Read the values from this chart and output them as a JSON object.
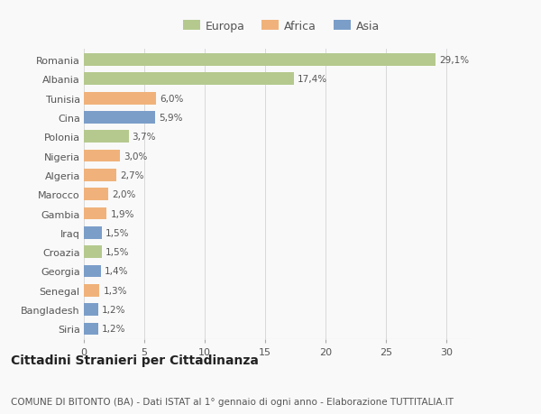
{
  "categories": [
    "Romania",
    "Albania",
    "Tunisia",
    "Cina",
    "Polonia",
    "Nigeria",
    "Algeria",
    "Marocco",
    "Gambia",
    "Iraq",
    "Croazia",
    "Georgia",
    "Senegal",
    "Bangladesh",
    "Siria"
  ],
  "values": [
    29.1,
    17.4,
    6.0,
    5.9,
    3.7,
    3.0,
    2.7,
    2.0,
    1.9,
    1.5,
    1.5,
    1.4,
    1.3,
    1.2,
    1.2
  ],
  "labels": [
    "29,1%",
    "17,4%",
    "6,0%",
    "5,9%",
    "3,7%",
    "3,0%",
    "2,7%",
    "2,0%",
    "1,9%",
    "1,5%",
    "1,5%",
    "1,4%",
    "1,3%",
    "1,2%",
    "1,2%"
  ],
  "colors": [
    "#b5c98e",
    "#b5c98e",
    "#f0b27a",
    "#7b9ec9",
    "#b5c98e",
    "#f0b27a",
    "#f0b27a",
    "#f0b27a",
    "#f0b27a",
    "#7b9ec9",
    "#b5c98e",
    "#7b9ec9",
    "#f0b27a",
    "#7b9ec9",
    "#7b9ec9"
  ],
  "legend_labels": [
    "Europa",
    "Africa",
    "Asia"
  ],
  "legend_colors": [
    "#b5c98e",
    "#f0b27a",
    "#7b9ec9"
  ],
  "title": "Cittadini Stranieri per Cittadinanza",
  "subtitle": "COMUNE DI BITONTO (BA) - Dati ISTAT al 1° gennaio di ogni anno - Elaborazione TUTTITALIA.IT",
  "xlim": [
    0,
    32
  ],
  "xticks": [
    0,
    5,
    10,
    15,
    20,
    25,
    30
  ],
  "background_color": "#f9f9f9",
  "bar_height": 0.65,
  "label_fontsize": 7.5,
  "title_fontsize": 10,
  "subtitle_fontsize": 7.5,
  "tick_fontsize": 8,
  "legend_fontsize": 9
}
